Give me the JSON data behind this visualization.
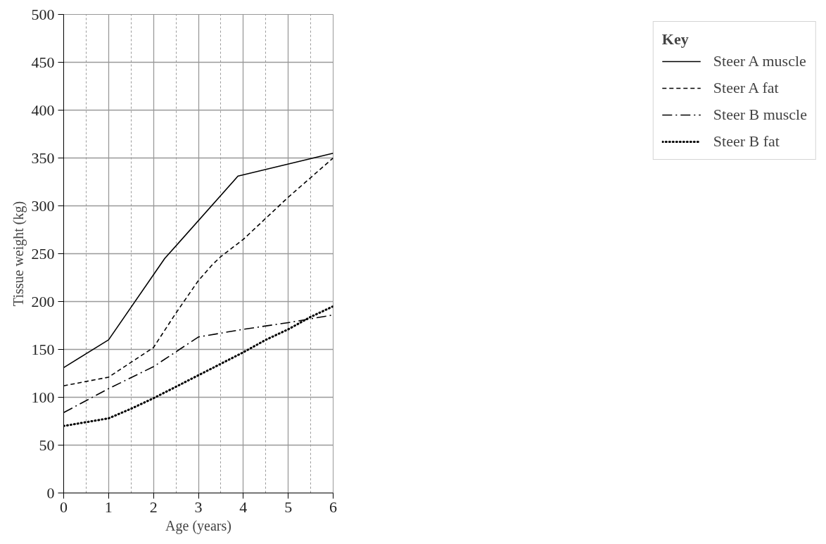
{
  "chart_data": {
    "type": "line",
    "xlabel": "Age (years)",
    "ylabel": "Tissue weight (kg)",
    "legend_title": "Key",
    "xlim": [
      0,
      6
    ],
    "xticks": [
      0,
      1,
      2,
      3,
      4,
      5,
      6
    ],
    "ylim": [
      0,
      500
    ],
    "yticks": [
      0,
      50,
      100,
      150,
      200,
      250,
      300,
      350,
      400,
      450,
      500
    ],
    "grid": true,
    "legend": "right",
    "marker": "none",
    "series": [
      {
        "name": "Steer A muscle",
        "color": "#000000",
        "line_style": "solid",
        "x": [
          0,
          1,
          2.25,
          3.88,
          6
        ],
        "values": [
          131,
          160,
          245,
          331,
          355
        ]
      },
      {
        "name": "Steer A fat",
        "color": "#000000",
        "line_style": "dashed",
        "x": [
          0,
          1,
          2,
          2.5,
          3,
          3.3,
          3.5,
          4,
          5,
          6
        ],
        "values": [
          112,
          121,
          152,
          188,
          222,
          238,
          247,
          265,
          309,
          350
        ]
      },
      {
        "name": "Steer B muscle",
        "color": "#000000",
        "line_style": "dashdot",
        "x": [
          0,
          1,
          2,
          3,
          4,
          5,
          6
        ],
        "values": [
          84,
          109,
          132,
          163,
          171,
          178,
          186
        ]
      },
      {
        "name": "Steer B fat",
        "color": "#000000",
        "line_style": "dotted",
        "x": [
          0,
          0.5,
          1,
          1.5,
          2,
          2.5,
          3,
          3.5,
          4,
          4.5,
          5,
          5.5,
          6
        ],
        "values": [
          70,
          74,
          78,
          88,
          99,
          111,
          123,
          135,
          147,
          160,
          171,
          184,
          195
        ]
      }
    ]
  }
}
